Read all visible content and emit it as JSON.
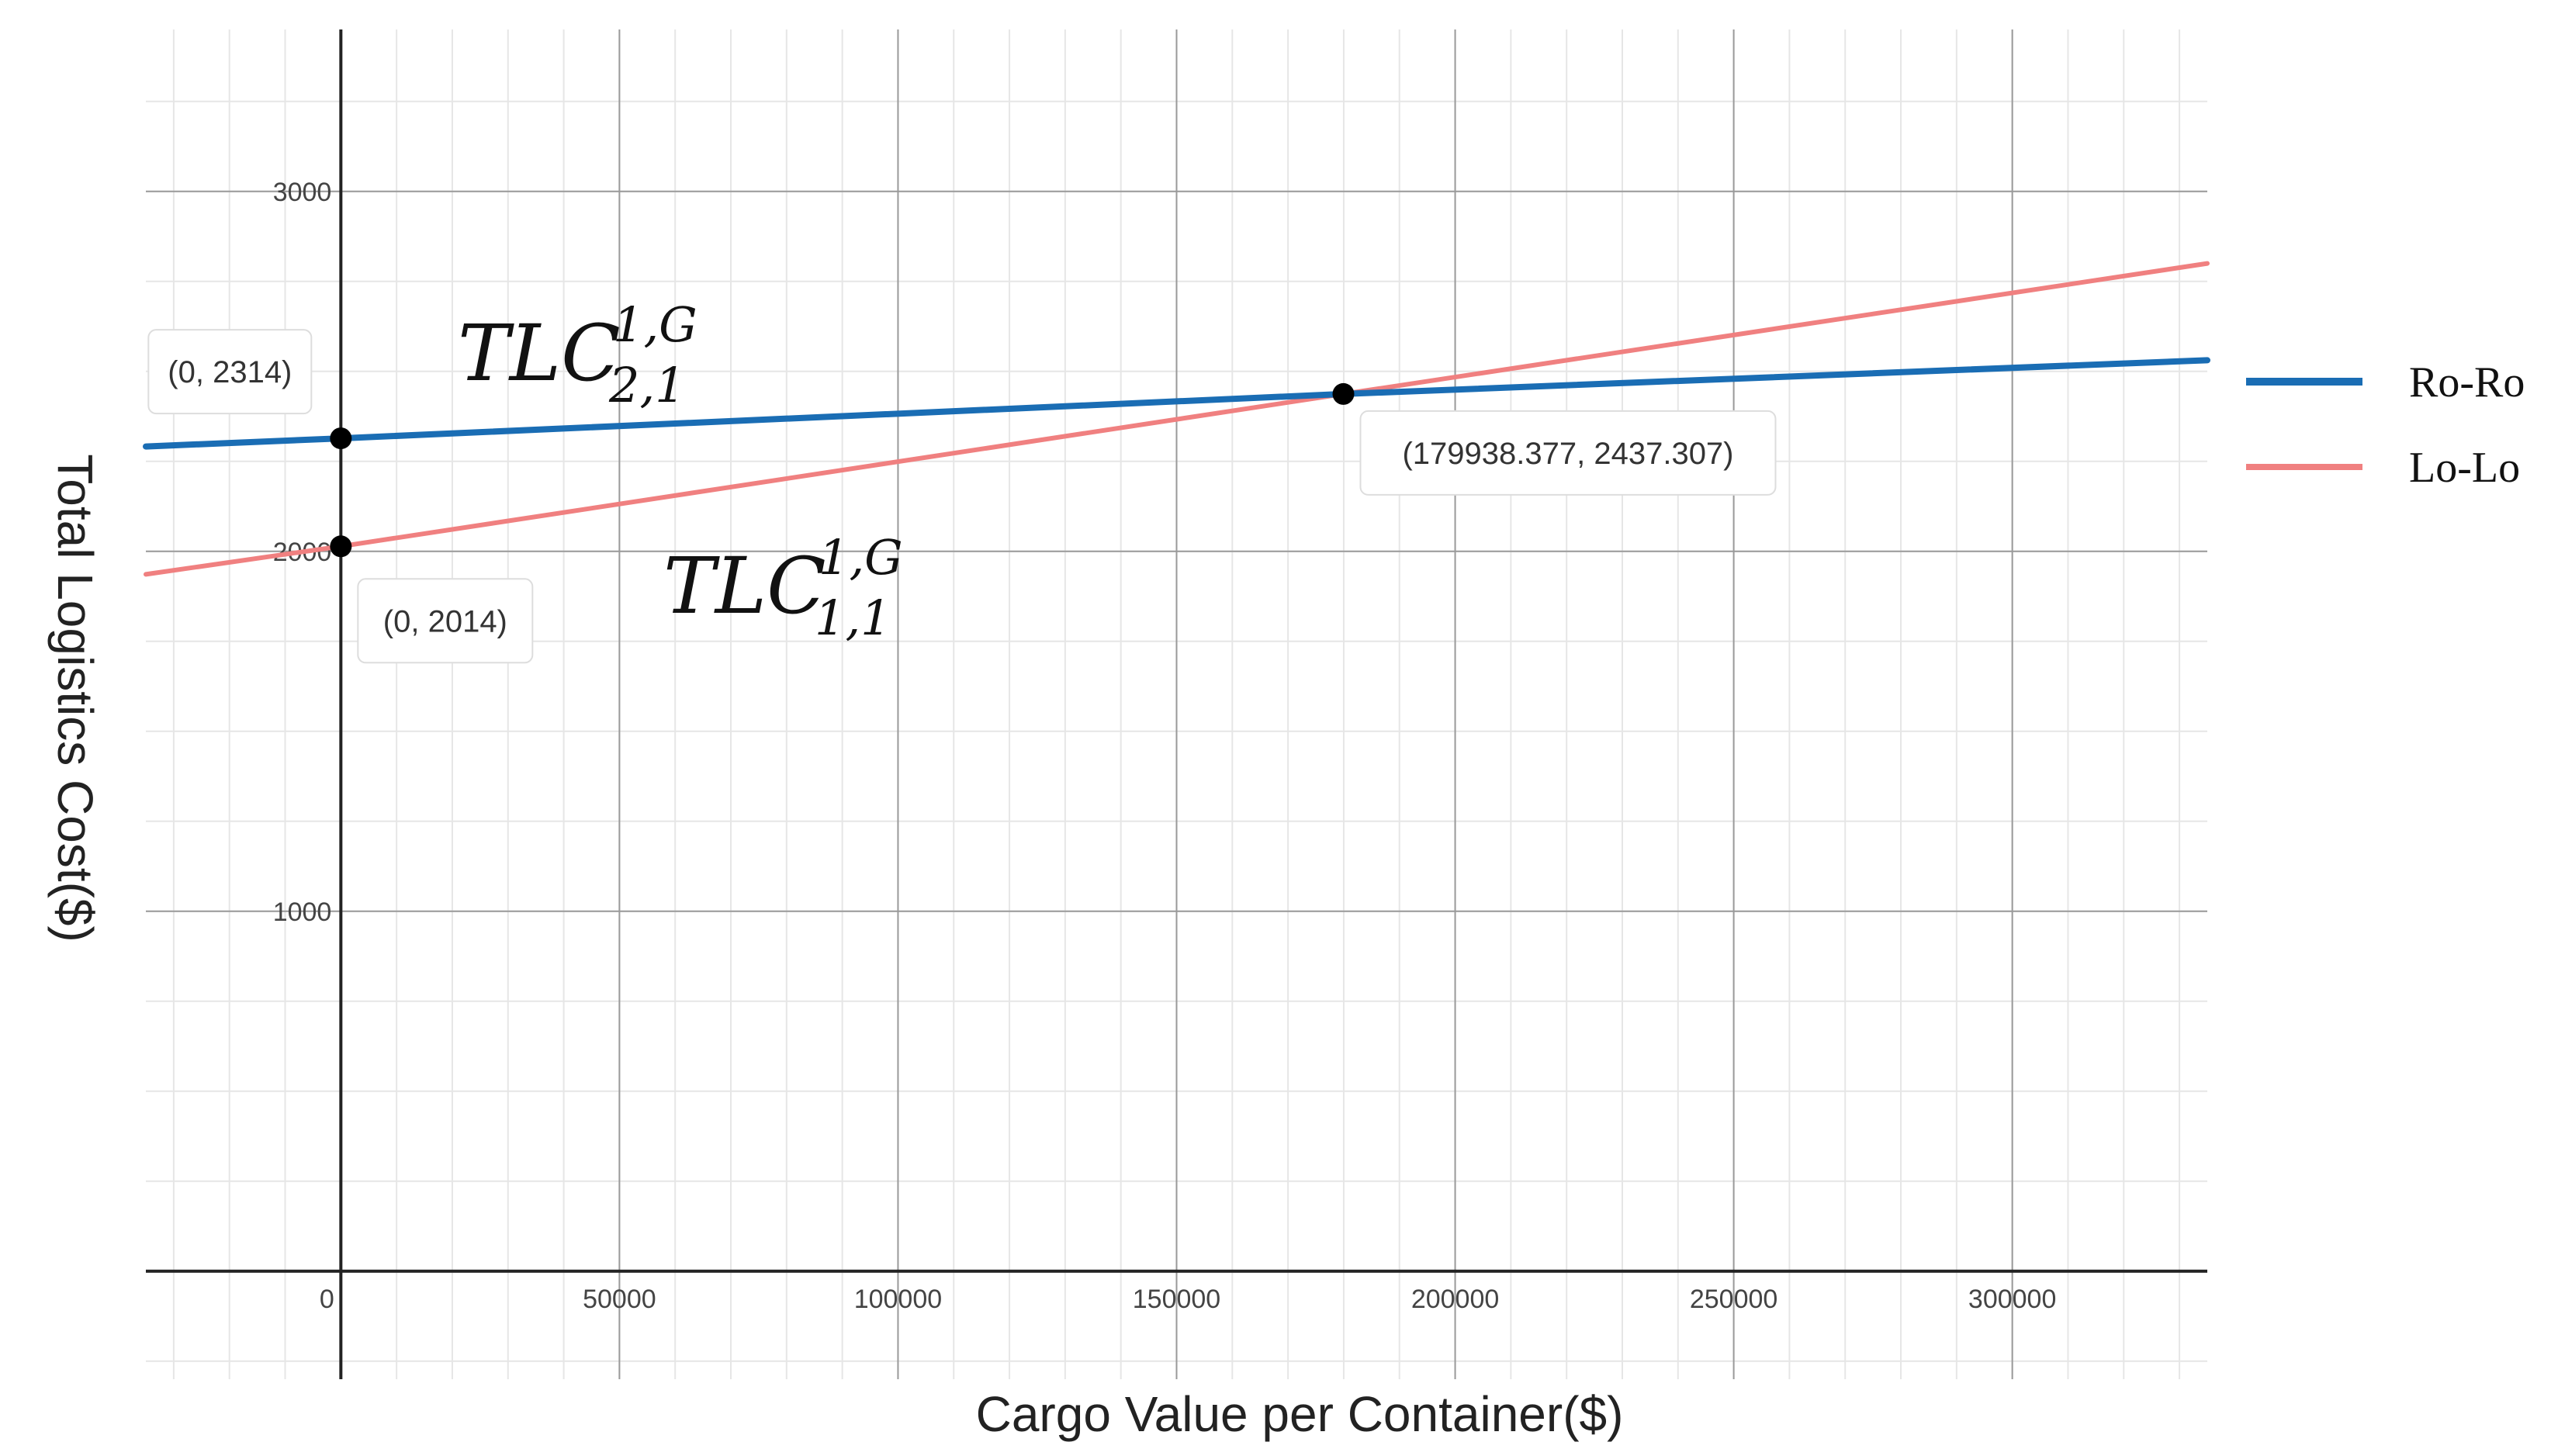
{
  "chart_data": {
    "type": "line",
    "xlabel": "Cargo Value per Container($)",
    "ylabel": "Total Logistics Cost($)",
    "xlim": [
      -35000,
      335000
    ],
    "ylim": [
      -300,
      3450
    ],
    "x_ticks": [
      0,
      50000,
      100000,
      150000,
      200000,
      250000,
      300000
    ],
    "x_tick_labels": [
      "0",
      "50000",
      "100000",
      "150000",
      "200000",
      "250000",
      "300000"
    ],
    "y_ticks": [
      1000,
      2000,
      3000
    ],
    "y_tick_labels": [
      "1000",
      "2000",
      "3000"
    ],
    "grid": true,
    "legend_position": "right",
    "series": [
      {
        "name": "Ro-Ro",
        "color": "#1a6db4",
        "x": [
          -35000,
          0,
          179938.377,
          335000
        ],
        "y": [
          2291.4,
          2314,
          2437.307,
          2531
        ]
      },
      {
        "name": "Lo-Lo",
        "color": "#f08080",
        "x": [
          -35000,
          0,
          179938.377,
          335000
        ],
        "y": [
          1936.3,
          2014,
          2437.307,
          2800
        ]
      }
    ],
    "points": [
      {
        "x": 0,
        "y": 2314,
        "label": "(0, 2314)"
      },
      {
        "x": 0,
        "y": 2014,
        "label": "(0, 2014)"
      },
      {
        "x": 179938.377,
        "y": 2437.307,
        "label": "(179938.377, 2437.307)"
      }
    ],
    "annotations": [
      {
        "base": "TLC",
        "sub": "2,1",
        "sup": "1,G"
      },
      {
        "base": "TLC",
        "sub": "1,1",
        "sup": "1,G"
      }
    ]
  }
}
